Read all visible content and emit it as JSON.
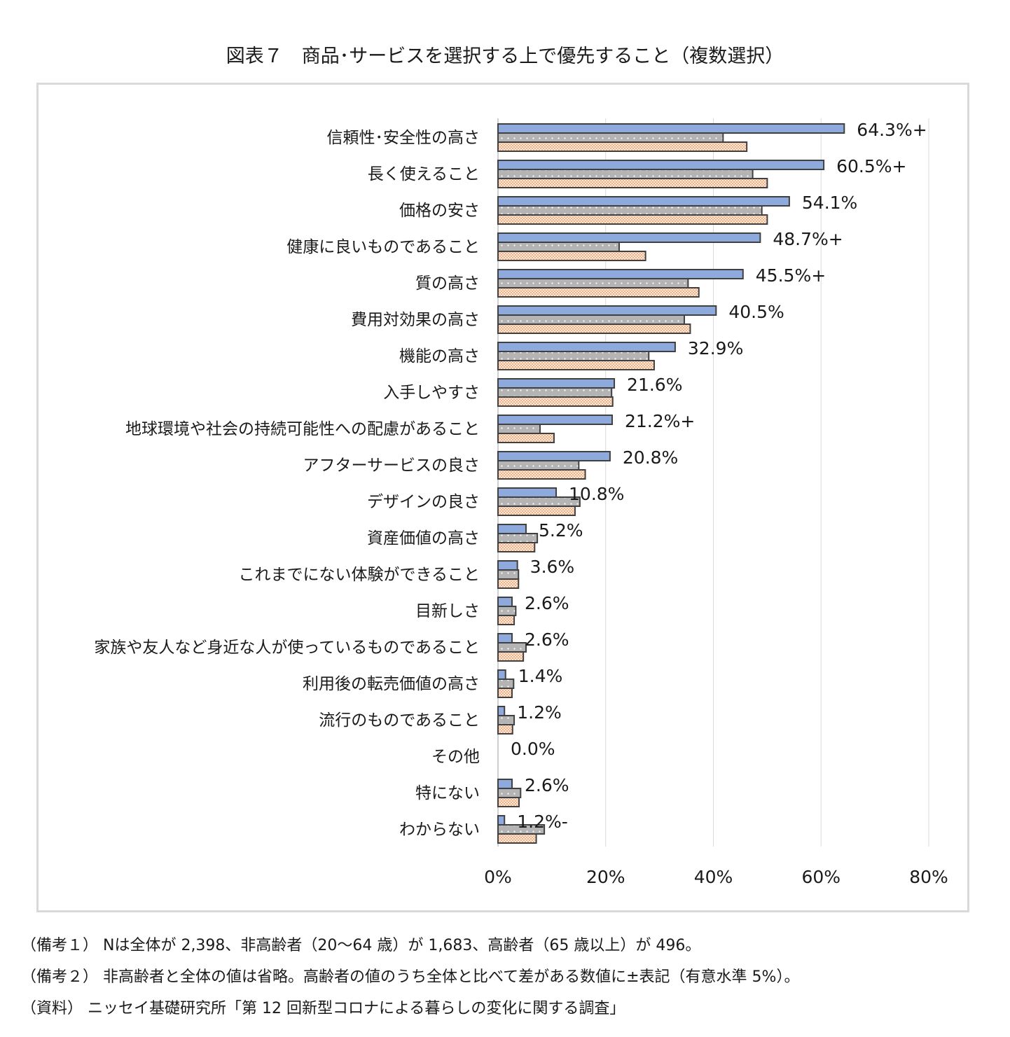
{
  "title": "図表７　商品･サービスを選択する上で優先すること（複数選択）",
  "colors": {
    "series1": "#8ea9db",
    "series2": "#b4b4b4",
    "series3": "#f4b183",
    "outline": "#404040",
    "grid": "#d9d9d9"
  },
  "chart_data": {
    "type": "bar",
    "orientation": "horizontal",
    "categories": [
      "信頼性･安全性の高さ",
      "長く使えること",
      "価格の安さ",
      "健康に良いものであること",
      "質の高さ",
      "費用対効果の高さ",
      "機能の高さ",
      "入手しやすさ",
      "地球環境や社会の持続可能性への配慮があること",
      "アフターサービスの良さ",
      "デザインの良さ",
      "資産価値の高さ",
      "これまでにない体験ができること",
      "目新しさ",
      "家族や友人など身近な人が使っているものであること",
      "利用後の転売価値の高さ",
      "流行のものであること",
      "その他",
      "特にない",
      "わからない"
    ],
    "series": [
      {
        "values": [
          64.3,
          60.5,
          54.1,
          48.7,
          45.5,
          40.5,
          32.9,
          21.6,
          21.2,
          20.8,
          10.8,
          5.2,
          3.6,
          2.6,
          2.6,
          1.4,
          1.2,
          0.0,
          2.6,
          1.2
        ],
        "labels": [
          "64.3%+",
          "60.5%+",
          "54.1%",
          "48.7%+",
          "45.5%+",
          "40.5%",
          "32.9%",
          "21.6%",
          "21.2%+",
          "20.8%",
          "10.8%",
          "5.2%",
          "3.6%",
          "2.6%",
          "2.6%",
          "1.4%",
          "1.2%",
          "0.0%",
          "2.6%",
          "1.2%-"
        ]
      },
      {
        "values": [
          41.8,
          47.3,
          49.0,
          22.5,
          35.3,
          34.6,
          28.0,
          21.1,
          7.8,
          15.0,
          15.2,
          7.3,
          3.8,
          3.3,
          5.2,
          2.9,
          3.0,
          0.0,
          4.2,
          8.6
        ]
      },
      {
        "values": [
          46.2,
          50.0,
          50.0,
          27.4,
          37.3,
          35.7,
          29.0,
          21.3,
          10.4,
          16.2,
          14.3,
          6.8,
          3.8,
          3.0,
          4.7,
          2.6,
          2.7,
          0.0,
          3.9,
          7.1
        ]
      }
    ],
    "xlim": [
      0,
      80
    ],
    "xticks": [
      "0%",
      "20%",
      "40%",
      "60%",
      "80%"
    ],
    "grid": true
  },
  "notes": [
    "（備考１） Nは全体が 2,398、非高齢者（20～64 歳）が 1,683、高齢者（65 歳以上）が 496。",
    "（備考２） 非高齢者と全体の値は省略。高齢者の値のうち全体と比べて差がある数値に±表記（有意水準 5%）。",
    "（資料） ニッセイ基礎研究所「第 12 回新型コロナによる暮らしの変化に関する調査」"
  ]
}
